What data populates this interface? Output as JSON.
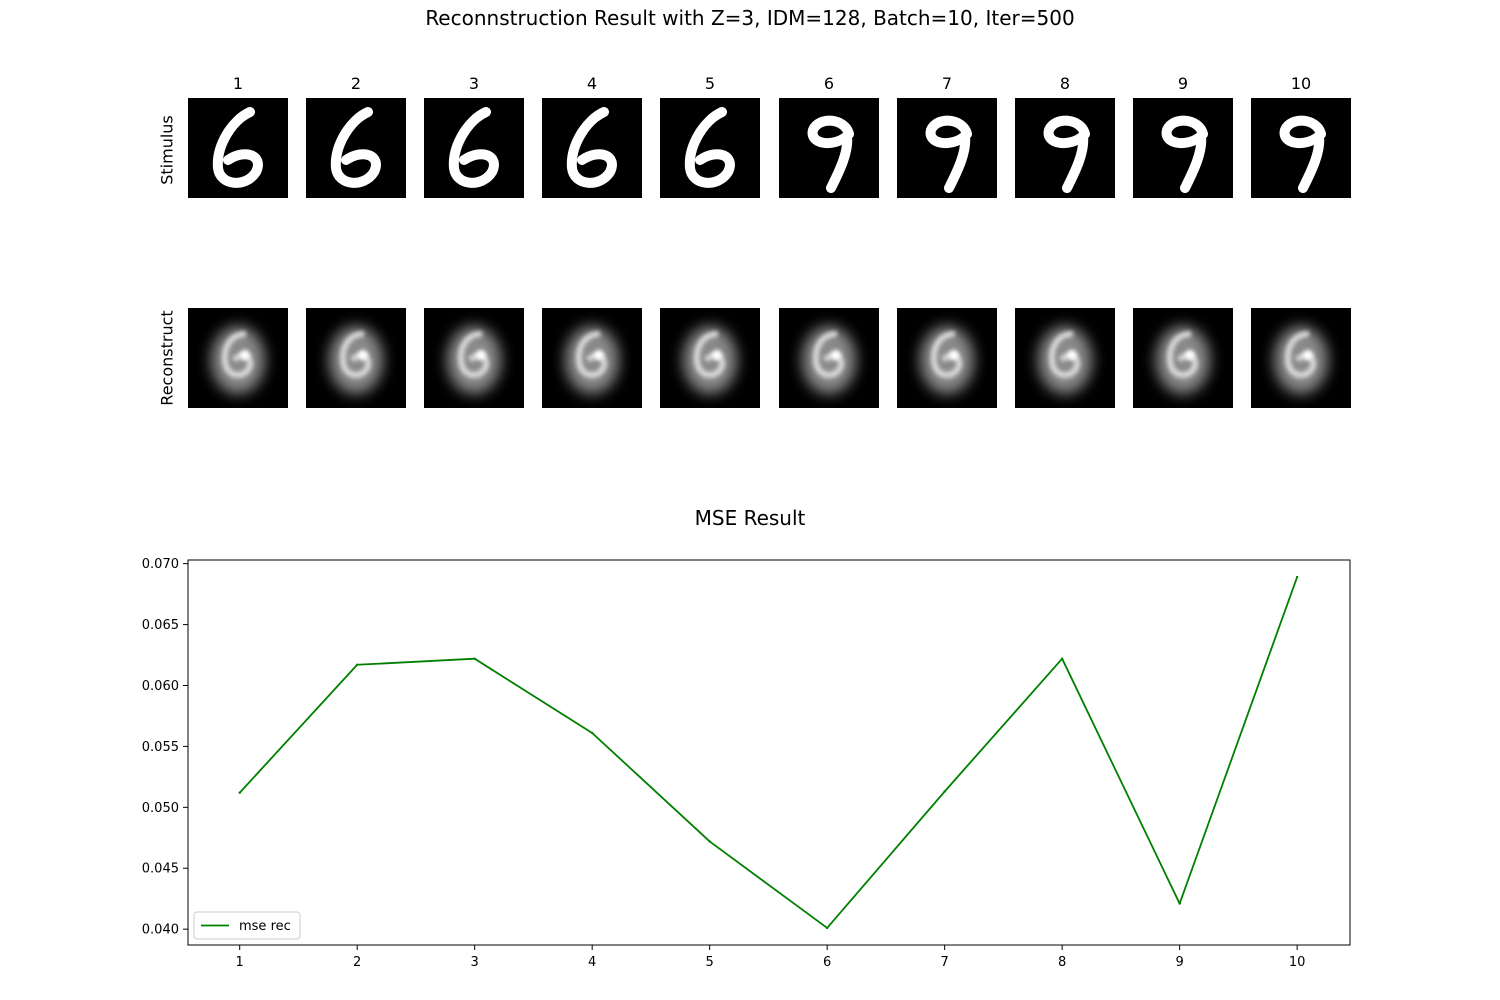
{
  "figure": {
    "suptitle": "Reconnstruction Result with Z=3, IDM=128, Batch=10, Iter=500",
    "row_labels": {
      "stimulus": "Stimulus",
      "reconstruct": "Reconstruct"
    },
    "column_labels": [
      "1",
      "2",
      "3",
      "4",
      "5",
      "6",
      "7",
      "8",
      "9",
      "10"
    ],
    "stimulus_digits": [
      "6",
      "6",
      "6",
      "6",
      "6",
      "9",
      "9",
      "9",
      "9",
      "9"
    ]
  },
  "chart_data": {
    "type": "line",
    "title": "MSE Result",
    "xlabel": "",
    "ylabel": "",
    "x": [
      1,
      2,
      3,
      4,
      5,
      6,
      7,
      8,
      9,
      10
    ],
    "xticks": [
      "1",
      "2",
      "3",
      "4",
      "5",
      "6",
      "7",
      "8",
      "9",
      "10"
    ],
    "yticks": [
      "0.040",
      "0.045",
      "0.050",
      "0.055",
      "0.060",
      "0.065",
      "0.070"
    ],
    "ylim": [
      0.0387,
      0.0703
    ],
    "xlim": [
      0.56,
      10.45
    ],
    "grid": false,
    "legend_position": "lower-left",
    "series": [
      {
        "name": "mse rec",
        "color": "#008000",
        "values": [
          0.0512,
          0.0617,
          0.0622,
          0.0561,
          0.0472,
          0.0401,
          0.0513,
          0.0622,
          0.0421,
          0.0689
        ]
      }
    ]
  }
}
